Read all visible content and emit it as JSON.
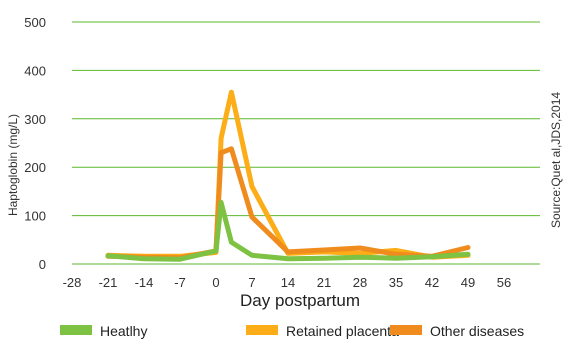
{
  "chart_data": {
    "type": "line",
    "xlabel": "Day postpartum",
    "ylabel": "Haptoglobin (mg/L)",
    "source": "Source:Quet al,JDS,2014",
    "xlim": [
      -28,
      63
    ],
    "ylim": [
      0,
      500
    ],
    "x_ticks": [
      -28,
      -21,
      -14,
      -7,
      0,
      7,
      14,
      21,
      28,
      35,
      42,
      49,
      56
    ],
    "y_ticks": [
      0,
      100,
      200,
      300,
      400,
      500
    ],
    "grid": true,
    "legend_position": "bottom",
    "series": [
      {
        "name": "Heatlhy",
        "color": "#7dc242",
        "points": [
          {
            "x": -21,
            "y": 17
          },
          {
            "x": -14,
            "y": 11
          },
          {
            "x": -7,
            "y": 10
          },
          {
            "x": 0,
            "y": 27
          },
          {
            "x": 1,
            "y": 127
          },
          {
            "x": 3,
            "y": 45
          },
          {
            "x": 7,
            "y": 18
          },
          {
            "x": 14,
            "y": 11
          },
          {
            "x": 21,
            "y": 12
          },
          {
            "x": 28,
            "y": 14
          },
          {
            "x": 35,
            "y": 12
          },
          {
            "x": 42,
            "y": 15
          },
          {
            "x": 49,
            "y": 20
          }
        ]
      },
      {
        "name": "Retained placenta",
        "color": "#fcad17",
        "points": [
          {
            "x": -21,
            "y": 18
          },
          {
            "x": -14,
            "y": 16
          },
          {
            "x": -7,
            "y": 16
          },
          {
            "x": 0,
            "y": 24
          },
          {
            "x": 1,
            "y": 260
          },
          {
            "x": 3,
            "y": 355
          },
          {
            "x": 7,
            "y": 160
          },
          {
            "x": 14,
            "y": 22
          },
          {
            "x": 21,
            "y": 25
          },
          {
            "x": 28,
            "y": 22
          },
          {
            "x": 35,
            "y": 28
          },
          {
            "x": 42,
            "y": 14
          },
          {
            "x": 49,
            "y": 18
          }
        ]
      },
      {
        "name": "Other diseases",
        "color": "#f08c1d",
        "points": [
          {
            "x": -21,
            "y": 16
          },
          {
            "x": -14,
            "y": 14
          },
          {
            "x": -7,
            "y": 13
          },
          {
            "x": 0,
            "y": 27
          },
          {
            "x": 1,
            "y": 230
          },
          {
            "x": 3,
            "y": 238
          },
          {
            "x": 7,
            "y": 97
          },
          {
            "x": 14,
            "y": 25
          },
          {
            "x": 21,
            "y": 29
          },
          {
            "x": 28,
            "y": 33
          },
          {
            "x": 35,
            "y": 20
          },
          {
            "x": 42,
            "y": 16
          },
          {
            "x": 49,
            "y": 34
          }
        ]
      }
    ]
  }
}
